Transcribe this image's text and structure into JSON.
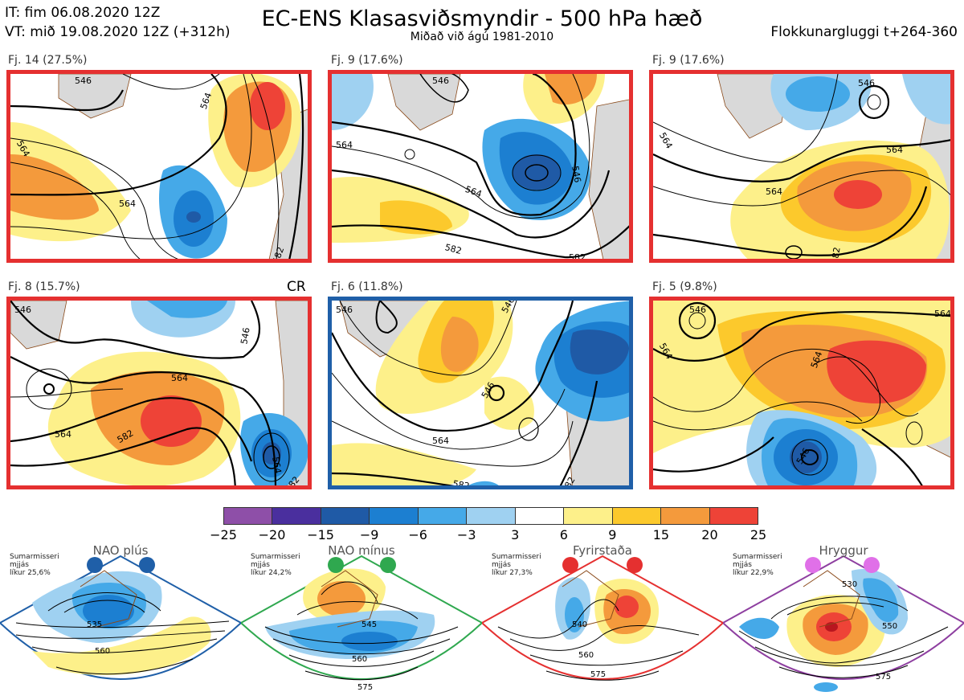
{
  "header": {
    "it": "IT: fim 06.08.2020 12Z",
    "vt": "VT: mið 19.08.2020 12Z  (+312h)",
    "title": "EC-ENS Klasasviðsmyndir - 500 hPa hæð",
    "subtitle": "Miðað við ágú 1981-2010",
    "window": "Flokkunargluggi t+264-360"
  },
  "panels": [
    {
      "label": "Fj. 14 (27.5%)",
      "border_color": "#e53030",
      "contours": [
        "546",
        "564",
        "564",
        "564",
        "582"
      ]
    },
    {
      "label": "Fj. 9 (17.6%)",
      "border_color": "#e53030",
      "contours": [
        "546",
        "564",
        "564",
        "546",
        "582",
        "582"
      ]
    },
    {
      "label": "Fj. 9 (17.6%)",
      "border_color": "#e53030",
      "contours": [
        "546",
        "564",
        "564",
        "564",
        "582"
      ]
    },
    {
      "label": "Fj. 8 (15.7%)",
      "border_color": "#e53030",
      "tag": "CR",
      "contours": [
        "546",
        "546",
        "564",
        "564",
        "582",
        "564",
        "582"
      ]
    },
    {
      "label": "Fj. 6 (11.8%)",
      "border_color": "#1f5fa8",
      "contours": [
        "546",
        "546",
        "546",
        "564",
        "582",
        "582"
      ]
    },
    {
      "label": "Fj. 5 (9.8%)",
      "border_color": "#e53030",
      "contours": [
        "546",
        "564",
        "564",
        "546",
        "582",
        "564"
      ]
    }
  ],
  "colorbar": {
    "ticks": [
      "−25",
      "−20",
      "−15",
      "−9",
      "−6",
      "−3",
      "3",
      "6",
      "9",
      "15",
      "20",
      "25"
    ],
    "colors": [
      "#8e4fa8",
      "#4a2f9e",
      "#1f5aa6",
      "#1c7fd1",
      "#45a9e8",
      "#9fd1f1",
      "#ffffff",
      "#fdf08a",
      "#fcc92c",
      "#f49a3c",
      "#ee4337",
      "#b8161f"
    ]
  },
  "regimes": [
    {
      "name": "NAO plús",
      "note": [
        "Sumarmisseri",
        "mjjás",
        "líkur 25,6%"
      ],
      "color": "#1f5fa8",
      "contours": [
        "535",
        "560"
      ]
    },
    {
      "name": "NAO mínus",
      "note": [
        "Sumarmisseri",
        "mjjás",
        "líkur 24,2%"
      ],
      "color": "#2fa84f",
      "contours": [
        "545",
        "560",
        "575"
      ]
    },
    {
      "name": "Fyrirstaða",
      "note": [
        "Sumarmisseri",
        "mjjás",
        "líkur 27,3%"
      ],
      "color": "#e53030",
      "contours": [
        "540",
        "560",
        "575"
      ]
    },
    {
      "name": "Hryggur",
      "note": [
        "Sumarmisseri",
        "mjjás",
        "líkur 22,9%"
      ],
      "color": "#e070e8",
      "border": "#8e3fa0",
      "contours": [
        "530",
        "550",
        "575"
      ]
    }
  ]
}
